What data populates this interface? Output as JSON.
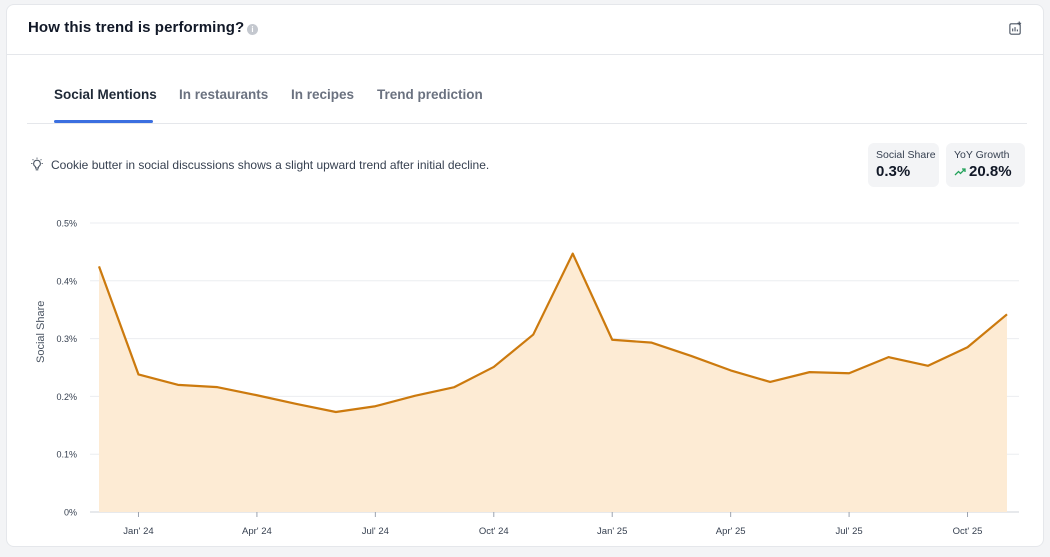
{
  "header": {
    "title": "How this trend is performing?",
    "info_icon": "info-icon",
    "export_icon": "chart-export-icon"
  },
  "tabs": [
    {
      "label": "Social Mentions",
      "active": true
    },
    {
      "label": "In restaurants",
      "active": false
    },
    {
      "label": "In recipes",
      "active": false
    },
    {
      "label": "Trend prediction",
      "active": false
    }
  ],
  "insight": {
    "icon": "lightbulb-icon",
    "text": "Cookie butter in social discussions shows a slight upward trend after initial decline."
  },
  "metrics": {
    "social_share": {
      "label": "Social Share",
      "value": "0.3%"
    },
    "yoy_growth": {
      "label": "YoY Growth",
      "value": "20.8%",
      "icon": "trend-up-icon"
    }
  },
  "colors": {
    "accent": "#3b6fe0",
    "line": "#cc7a0e",
    "area": "#fdebd4",
    "positive": "#22a25a"
  },
  "chart_data": {
    "type": "area",
    "ylabel": "Social Share",
    "ylim": [
      0,
      0.5
    ],
    "yticks": [
      "0%",
      "0.1%",
      "0.2%",
      "0.3%",
      "0.4%",
      "0.5%"
    ],
    "xticks": [
      "Jan' 24",
      "Apr' 24",
      "Jul' 24",
      "Oct' 24",
      "Jan' 25",
      "Apr' 25",
      "Jul' 25",
      "Oct' 25"
    ],
    "grid": true,
    "series": [
      {
        "x": [
          "Dec' 23",
          "Jan' 24",
          "Feb' 24",
          "Mar' 24",
          "Apr' 24",
          "May' 24",
          "Jun' 24",
          "Jul' 24",
          "Aug' 24",
          "Sep' 24",
          "Oct' 24",
          "Nov' 24",
          "Dec' 24",
          "Jan' 25",
          "Feb' 25",
          "Mar' 25",
          "Apr' 25",
          "May' 25",
          "Jun' 25",
          "Jul' 25",
          "Aug' 25",
          "Sep' 25",
          "Oct' 25",
          "Nov' 25"
        ],
        "values": [
          0.425,
          0.238,
          0.22,
          0.216,
          0.202,
          0.187,
          0.173,
          0.183,
          0.201,
          0.216,
          0.251,
          0.307,
          0.447,
          0.298,
          0.293,
          0.27,
          0.245,
          0.225,
          0.242,
          0.24,
          0.268,
          0.253,
          0.285,
          0.342
        ]
      }
    ]
  }
}
